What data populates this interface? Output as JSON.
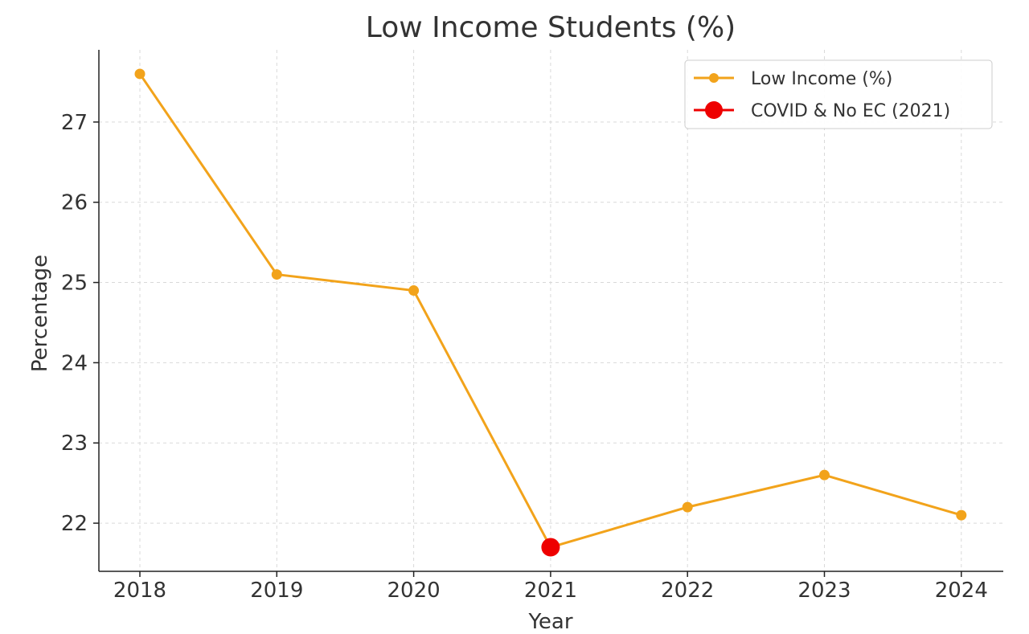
{
  "chart_data": {
    "type": "line",
    "title": "Low Income Students (%)",
    "xlabel": "Year",
    "ylabel": "Percentage",
    "categories": [
      "2018",
      "2019",
      "2020",
      "2021",
      "2022",
      "2023",
      "2024"
    ],
    "ylim": [
      21.4,
      27.9
    ],
    "yticks": [
      22,
      23,
      24,
      25,
      26,
      27
    ],
    "grid": true,
    "legend_position": "top-right",
    "series": [
      {
        "name": "Low Income (%)",
        "values": [
          27.6,
          25.1,
          24.9,
          21.7,
          22.2,
          22.6,
          22.1
        ],
        "color": "#f2a31b"
      }
    ],
    "highlight": {
      "name": "COVID & No EC (2021)",
      "x": "2021",
      "value": 21.7,
      "color": "#ee0000"
    }
  }
}
